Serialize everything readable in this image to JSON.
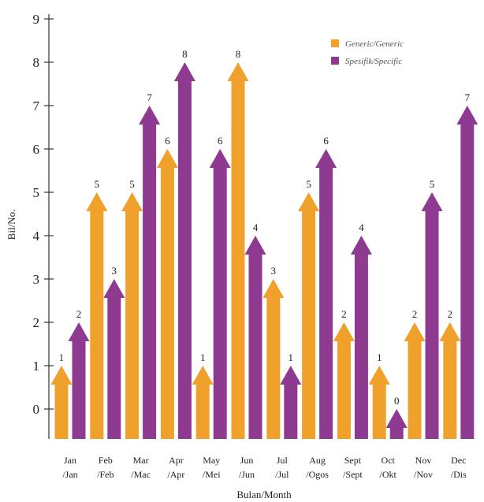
{
  "chart_data": {
    "type": "bar",
    "xlabel": "Bulan/Month",
    "ylabel": "Bil/No.",
    "ylim": [
      0,
      9
    ],
    "yticks": [
      0,
      1,
      2,
      3,
      4,
      5,
      6,
      7,
      8,
      9
    ],
    "categories": [
      [
        "Jan",
        "/Jan"
      ],
      [
        "Feb",
        "/Feb"
      ],
      [
        "Mar",
        "/Mac"
      ],
      [
        "Apr",
        "/Apr"
      ],
      [
        "May",
        "/Mei"
      ],
      [
        "Jun",
        "/Jun"
      ],
      [
        "Jul",
        "/Jul"
      ],
      [
        "Aug",
        "/Ogos"
      ],
      [
        "Sept",
        "/Sept"
      ],
      [
        "Oct",
        "/Okt"
      ],
      [
        "Nov",
        "/Nov"
      ],
      [
        "Dec",
        "/Dis"
      ]
    ],
    "series": [
      {
        "name": "Generic/Generic",
        "color": "#f0a12b",
        "values": [
          1,
          5,
          5,
          6,
          1,
          8,
          3,
          5,
          2,
          1,
          2,
          2
        ]
      },
      {
        "name": "Spesifik/Specific",
        "color": "#8e3a91",
        "values": [
          2,
          3,
          7,
          8,
          6,
          4,
          1,
          6,
          4,
          0,
          5,
          7
        ]
      }
    ],
    "legend_position": "top-right",
    "grid": false,
    "bar_style": "arrow"
  }
}
